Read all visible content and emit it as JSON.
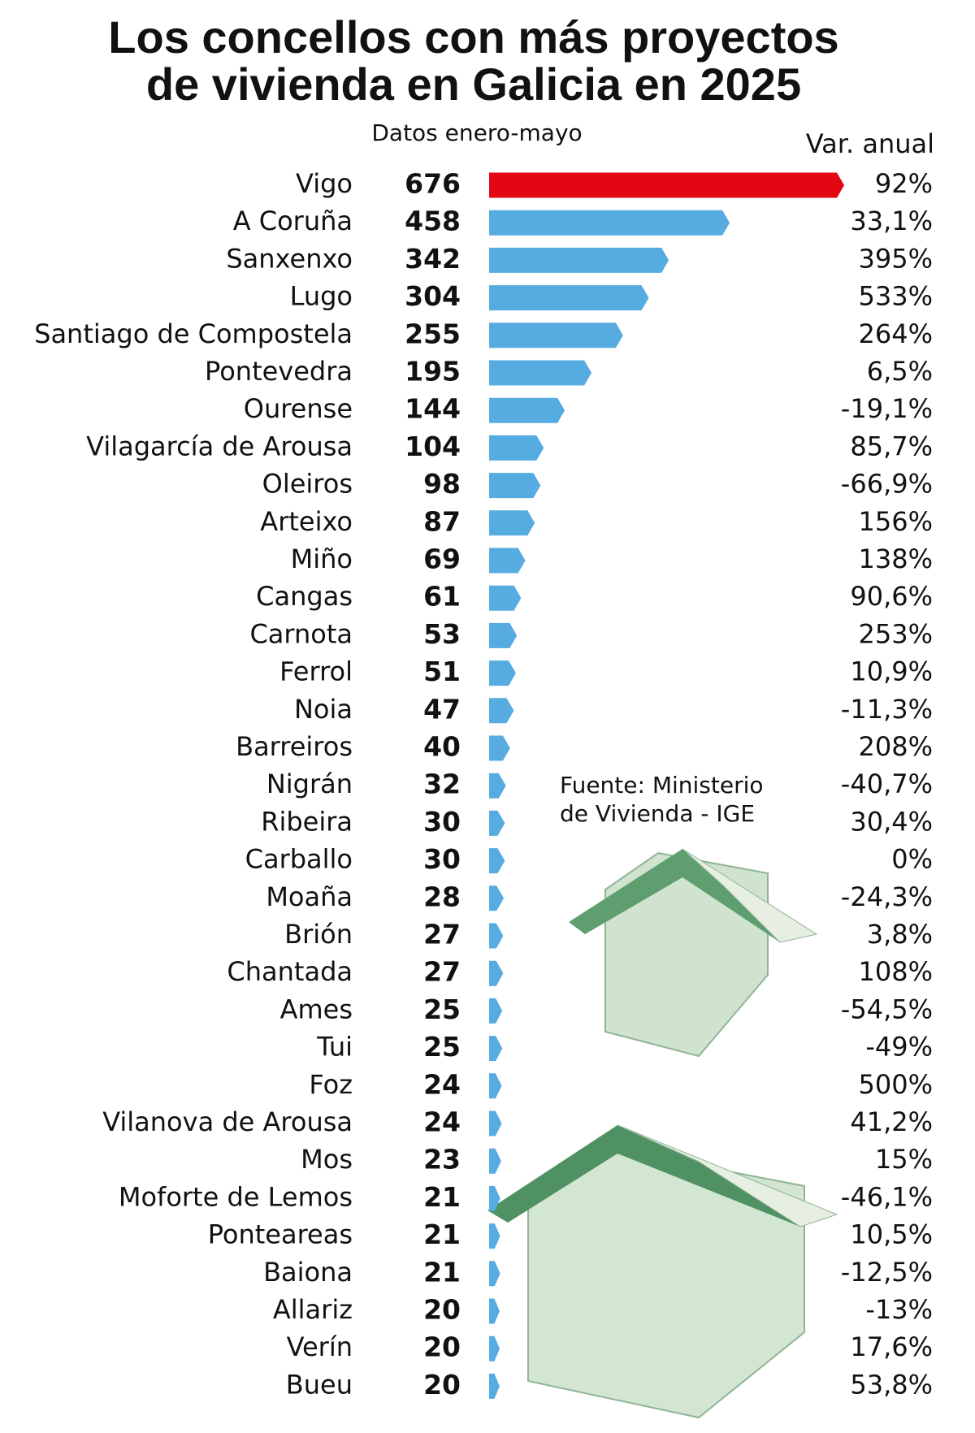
{
  "chart_data": {
    "type": "bar",
    "title": [
      "Los concellos con más proyectos",
      "de vivienda en Galicia en 2025"
    ],
    "subtitle": "Datos enero-mayo",
    "source": [
      "Fuente: Ministerio",
      "de Vivienda - IGE"
    ],
    "categories": [
      "Vigo",
      "A Coruña",
      "Sanxenxo",
      "Lugo",
      "Santiago de Compostela",
      "Pontevedra",
      "Ourense",
      "Vilagarcía de Arousa",
      "Oleiros",
      "Arteixo",
      "Miño",
      "Cangas",
      "Carnota",
      "Ferrol",
      "Noia",
      "Barreiros",
      "Nigrán",
      "Ribeira",
      "Carballo",
      "Moaña",
      "Brión",
      "Chantada",
      "Ames",
      "Tui",
      "Foz",
      "Vilanova de Arousa",
      "Mos",
      "Moforte de Lemos",
      "Ponteareas",
      "Baiona",
      "Allariz",
      "Verín",
      "Bueu"
    ],
    "values": [
      676,
      458,
      342,
      304,
      255,
      195,
      144,
      104,
      98,
      87,
      69,
      61,
      53,
      51,
      47,
      40,
      32,
      30,
      30,
      28,
      27,
      27,
      25,
      25,
      24,
      24,
      23,
      21,
      21,
      21,
      20,
      20,
      20
    ],
    "colors": [
      "#e30613",
      "#56abe0",
      "#56abe0",
      "#56abe0",
      "#56abe0",
      "#56abe0",
      "#56abe0",
      "#56abe0",
      "#56abe0",
      "#56abe0",
      "#56abe0",
      "#56abe0",
      "#56abe0",
      "#56abe0",
      "#56abe0",
      "#56abe0",
      "#56abe0",
      "#56abe0",
      "#56abe0",
      "#56abe0",
      "#56abe0",
      "#56abe0",
      "#56abe0",
      "#56abe0",
      "#56abe0",
      "#56abe0",
      "#56abe0",
      "#56abe0",
      "#56abe0",
      "#56abe0",
      "#56abe0",
      "#56abe0",
      "#56abe0"
    ],
    "annual_change": {
      "title": "Var. anual",
      "labels": [
        "92%",
        "33,1%",
        "395%",
        "533%",
        "264%",
        "6,5%",
        "-19,1%",
        "85,7%",
        "-66,9%",
        "156%",
        "138%",
        "90,6%",
        "253%",
        "10,9%",
        "-11,3%",
        "208%",
        "-40,7%",
        "30,4%",
        "0%",
        "-24,3%",
        "3,8%",
        "108%",
        "-54,5%",
        "-49%",
        "500%",
        "41,2%",
        "15%",
        "-46,1%",
        "10,5%",
        "-12,5%",
        "-13%",
        "17,6%",
        "53,8%"
      ]
    }
  }
}
